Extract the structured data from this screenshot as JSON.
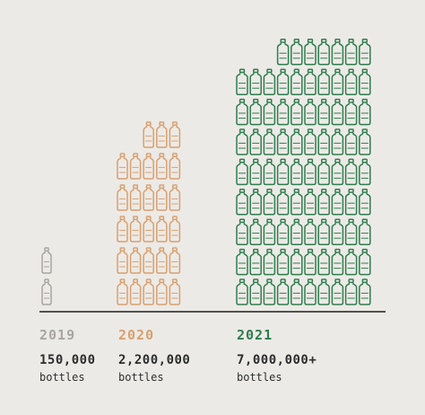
{
  "chart_data": {
    "type": "pictograph",
    "unit_icon": "plastic-bottle-icon",
    "series": [
      {
        "year": "2019",
        "value_label": "150,000",
        "unit": "bottles",
        "value": 150000,
        "color": "#a9a5a1",
        "icon_rows": [
          2
        ],
        "icon_cols": 1,
        "top_row_icons": 1
      },
      {
        "year": "2020",
        "value_label": "2,200,000",
        "unit": "bottles",
        "value": 2200000,
        "color": "#d8a070",
        "icon_cols": 5,
        "icon_rows": [
          6
        ],
        "top_row_icons": 3
      },
      {
        "year": "2021",
        "value_label": "7,000,000+",
        "unit": "bottles",
        "value": 7000000,
        "color": "#2e7d4f",
        "icon_cols": 10,
        "icon_rows": [
          9
        ],
        "top_row_icons": 7
      }
    ],
    "baseline": true
  }
}
